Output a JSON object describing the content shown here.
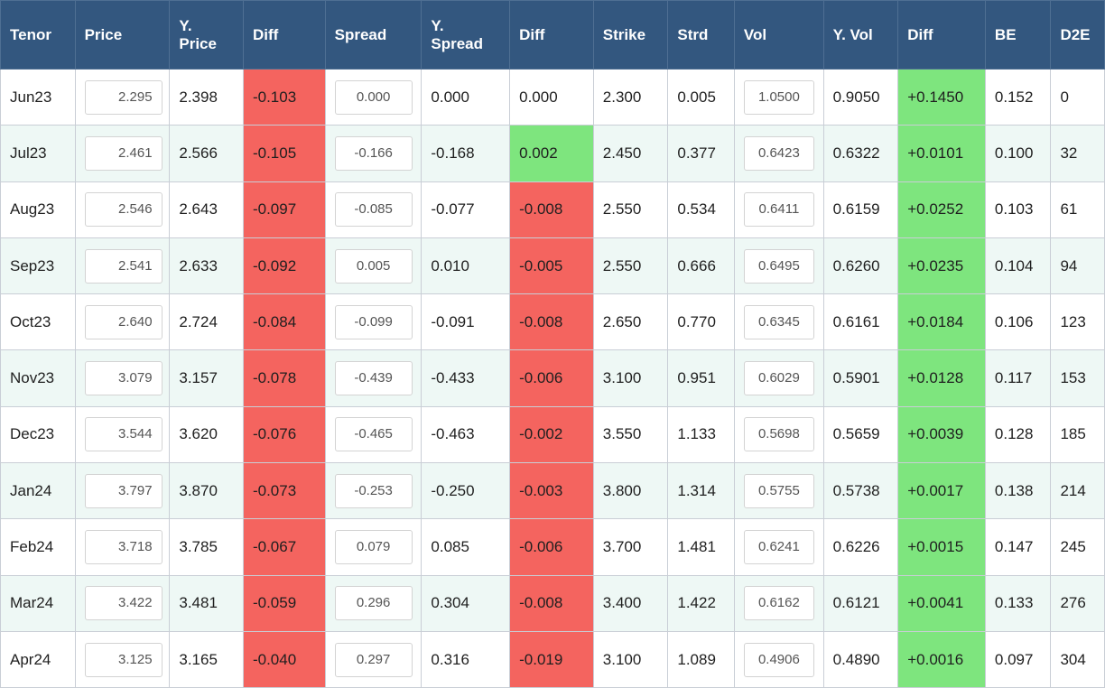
{
  "headers": [
    "Tenor",
    "Price",
    "Y.\nPrice",
    "Diff",
    "Spread",
    "Y.\nSpread",
    "Diff",
    "Strike",
    "Strd",
    "Vol",
    "Y. Vol",
    "Diff",
    "BE",
    "D2E"
  ],
  "colors": {
    "header_bg": "#33577f",
    "negative": "#f4645f",
    "positive": "#7ee57e",
    "row_alt": "#eef8f5"
  },
  "rows": [
    {
      "tenor": "Jun23",
      "price": "2.295",
      "y_price": "2.398",
      "diff": "-0.103",
      "diff_status": "negative",
      "spread": "0.000",
      "y_spread": "0.000",
      "spread_diff": "0.000",
      "spread_diff_status": "neutral",
      "strike": "2.300",
      "strd": "0.005",
      "vol": "1.0500",
      "y_vol": "0.9050",
      "vol_diff": "+0.1450",
      "vol_diff_status": "positive",
      "be": "0.152",
      "d2e": "0"
    },
    {
      "tenor": "Jul23",
      "price": "2.461",
      "y_price": "2.566",
      "diff": "-0.105",
      "diff_status": "negative",
      "spread": "-0.166",
      "y_spread": "-0.168",
      "spread_diff": "0.002",
      "spread_diff_status": "positive",
      "strike": "2.450",
      "strd": "0.377",
      "vol": "0.6423",
      "y_vol": "0.6322",
      "vol_diff": "+0.0101",
      "vol_diff_status": "positive",
      "be": "0.100",
      "d2e": "32"
    },
    {
      "tenor": "Aug23",
      "price": "2.546",
      "y_price": "2.643",
      "diff": "-0.097",
      "diff_status": "negative",
      "spread": "-0.085",
      "y_spread": "-0.077",
      "spread_diff": "-0.008",
      "spread_diff_status": "negative",
      "strike": "2.550",
      "strd": "0.534",
      "vol": "0.6411",
      "y_vol": "0.6159",
      "vol_diff": "+0.0252",
      "vol_diff_status": "positive",
      "be": "0.103",
      "d2e": "61"
    },
    {
      "tenor": "Sep23",
      "price": "2.541",
      "y_price": "2.633",
      "diff": "-0.092",
      "diff_status": "negative",
      "spread": "0.005",
      "y_spread": "0.010",
      "spread_diff": "-0.005",
      "spread_diff_status": "negative",
      "strike": "2.550",
      "strd": "0.666",
      "vol": "0.6495",
      "y_vol": "0.6260",
      "vol_diff": "+0.0235",
      "vol_diff_status": "positive",
      "be": "0.104",
      "d2e": "94"
    },
    {
      "tenor": "Oct23",
      "price": "2.640",
      "y_price": "2.724",
      "diff": "-0.084",
      "diff_status": "negative",
      "spread": "-0.099",
      "y_spread": "-0.091",
      "spread_diff": "-0.008",
      "spread_diff_status": "negative",
      "strike": "2.650",
      "strd": "0.770",
      "vol": "0.6345",
      "y_vol": "0.6161",
      "vol_diff": "+0.0184",
      "vol_diff_status": "positive",
      "be": "0.106",
      "d2e": "123"
    },
    {
      "tenor": "Nov23",
      "price": "3.079",
      "y_price": "3.157",
      "diff": "-0.078",
      "diff_status": "negative",
      "spread": "-0.439",
      "y_spread": "-0.433",
      "spread_diff": "-0.006",
      "spread_diff_status": "negative",
      "strike": "3.100",
      "strd": "0.951",
      "vol": "0.6029",
      "y_vol": "0.5901",
      "vol_diff": "+0.0128",
      "vol_diff_status": "positive",
      "be": "0.117",
      "d2e": "153"
    },
    {
      "tenor": "Dec23",
      "price": "3.544",
      "y_price": "3.620",
      "diff": "-0.076",
      "diff_status": "negative",
      "spread": "-0.465",
      "y_spread": "-0.463",
      "spread_diff": "-0.002",
      "spread_diff_status": "negative",
      "strike": "3.550",
      "strd": "1.133",
      "vol": "0.5698",
      "y_vol": "0.5659",
      "vol_diff": "+0.0039",
      "vol_diff_status": "positive",
      "be": "0.128",
      "d2e": "185"
    },
    {
      "tenor": "Jan24",
      "price": "3.797",
      "y_price": "3.870",
      "diff": "-0.073",
      "diff_status": "negative",
      "spread": "-0.253",
      "y_spread": "-0.250",
      "spread_diff": "-0.003",
      "spread_diff_status": "negative",
      "strike": "3.800",
      "strd": "1.314",
      "vol": "0.5755",
      "y_vol": "0.5738",
      "vol_diff": "+0.0017",
      "vol_diff_status": "positive",
      "be": "0.138",
      "d2e": "214"
    },
    {
      "tenor": "Feb24",
      "price": "3.718",
      "y_price": "3.785",
      "diff": "-0.067",
      "diff_status": "negative",
      "spread": "0.079",
      "y_spread": "0.085",
      "spread_diff": "-0.006",
      "spread_diff_status": "negative",
      "strike": "3.700",
      "strd": "1.481",
      "vol": "0.6241",
      "y_vol": "0.6226",
      "vol_diff": "+0.0015",
      "vol_diff_status": "positive",
      "be": "0.147",
      "d2e": "245"
    },
    {
      "tenor": "Mar24",
      "price": "3.422",
      "y_price": "3.481",
      "diff": "-0.059",
      "diff_status": "negative",
      "spread": "0.296",
      "y_spread": "0.304",
      "spread_diff": "-0.008",
      "spread_diff_status": "negative",
      "strike": "3.400",
      "strd": "1.422",
      "vol": "0.6162",
      "y_vol": "0.6121",
      "vol_diff": "+0.0041",
      "vol_diff_status": "positive",
      "be": "0.133",
      "d2e": "276"
    },
    {
      "tenor": "Apr24",
      "price": "3.125",
      "y_price": "3.165",
      "diff": "-0.040",
      "diff_status": "negative",
      "spread": "0.297",
      "y_spread": "0.316",
      "spread_diff": "-0.019",
      "spread_diff_status": "negative",
      "strike": "3.100",
      "strd": "1.089",
      "vol": "0.4906",
      "y_vol": "0.4890",
      "vol_diff": "+0.0016",
      "vol_diff_status": "positive",
      "be": "0.097",
      "d2e": "304"
    }
  ]
}
